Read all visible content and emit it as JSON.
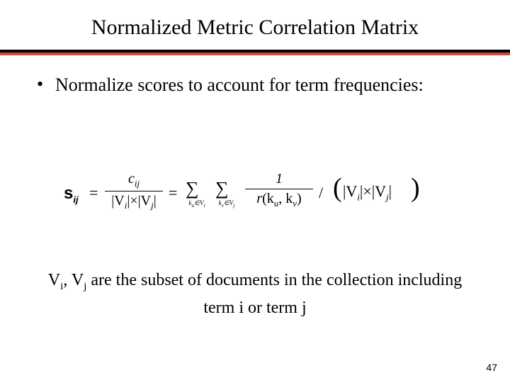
{
  "title": "Normalized Metric Correlation Matrix",
  "accent_color": "#d04a3a",
  "bullet": {
    "marker": "•",
    "text": "Normalize scores to account for term frequencies:"
  },
  "formula": {
    "lhs_var": "s",
    "lhs_sub": "ij",
    "eq": "=",
    "frac1_num_var": "c",
    "frac1_num_sub": "ij",
    "frac1_den": "|V",
    "frac1_den_i": "i",
    "frac1_den_times": "|×|V",
    "frac1_den_j": "j",
    "frac1_den_end": "|",
    "sum": "∑",
    "sum1_sub": "k",
    "sum1_sub2": "u",
    "sum1_in": "∈V",
    "sum1_set": "i",
    "sum2_sub": "k",
    "sum2_sub2": "v",
    "sum2_in": "∈V",
    "sum2_set": "j",
    "frac2_num": "1",
    "frac2_den_r": "r",
    "frac2_den_open": "(k",
    "frac2_den_u": "u",
    "frac2_den_comma": ", k",
    "frac2_den_v": "v",
    "frac2_den_close": ")",
    "div": "/",
    "paren_open": "(",
    "paren_close": ")",
    "rhs_v1": "|V",
    "rhs_i": "i",
    "rhs_mid": "|×|V",
    "rhs_j": "j",
    "rhs_end": "|"
  },
  "caption": {
    "pre": "V",
    "sub_i": "i",
    "mid1": ", V",
    "sub_j": "j",
    "rest": " are the subset of documents in the collection including term i or term j"
  },
  "page_number": "47"
}
